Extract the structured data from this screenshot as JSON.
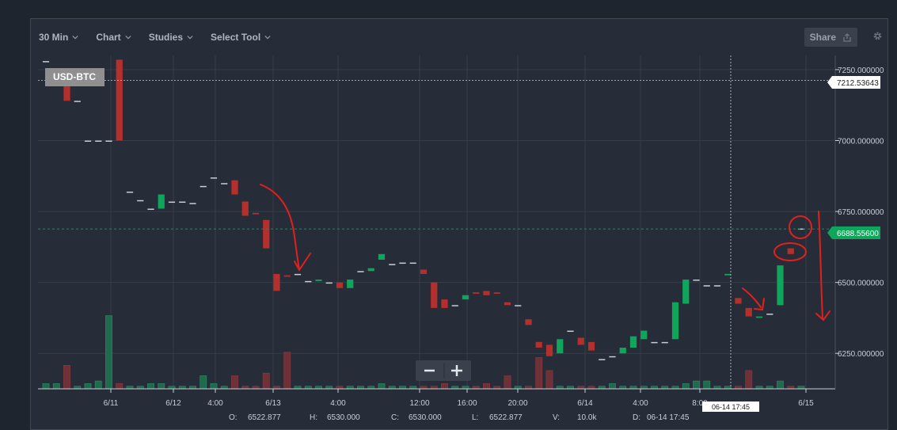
{
  "toolbar": {
    "interval": "30 Min",
    "chart": "Chart",
    "studies": "Studies",
    "select_tool": "Select Tool",
    "share": "Share"
  },
  "symbol": "USD-BTC",
  "crosshair_date": "06-14 17:45",
  "price_labels": {
    "crosshair": "7212.53643",
    "last": "6688.55600"
  },
  "ohlc": {
    "o_label": "O:",
    "o": "6522.877",
    "h_label": "H:",
    "h": "6530.000",
    "c_label": "C:",
    "c": "6530.000",
    "l_label": "L:",
    "l": "6522.877",
    "v_label": "V:",
    "v": "10.0k",
    "d_label": "D:",
    "d": "06-14 17:45"
  },
  "colors": {
    "up": "#0fa55a",
    "down": "#b3302d",
    "annotation": "#e0211d"
  },
  "chart_data": {
    "type": "candlestick",
    "y_ticks": [
      "7250.000000",
      "7000.000000",
      "6750.000000",
      "6500.000000",
      "6250.000000"
    ],
    "x_ticks": [
      "6/11",
      "6/12",
      "4:00",
      "6/13",
      "4:00",
      "12:00",
      "16:00",
      "20:00",
      "6/14",
      "4:00",
      "8:00",
      "6/15"
    ],
    "ylim": [
      6125,
      7300
    ],
    "grid": true,
    "candles": [
      {
        "o": 7280,
        "c": 7280
      },
      {
        "o": 7215,
        "c": 7215
      },
      {
        "o": 7200,
        "c": 7140
      },
      {
        "o": 7140,
        "c": 7140
      },
      {
        "o": 7000,
        "c": 7000
      },
      {
        "o": 7000,
        "c": 7000
      },
      {
        "o": 7000,
        "c": 7000
      },
      {
        "o": 7285,
        "c": 7000
      },
      {
        "o": 6820,
        "c": 6820
      },
      {
        "o": 6790,
        "c": 6790
      },
      {
        "o": 6760,
        "c": 6760
      },
      {
        "o": 6760,
        "c": 6810
      },
      {
        "o": 6785,
        "c": 6785
      },
      {
        "o": 6785,
        "c": 6785
      },
      {
        "o": 6780,
        "c": 6780
      },
      {
        "o": 6840,
        "c": 6840
      },
      {
        "o": 6870,
        "c": 6870
      },
      {
        "o": 6850,
        "c": 6850
      },
      {
        "o": 6860,
        "c": 6810
      },
      {
        "o": 6785,
        "c": 6735
      },
      {
        "o": 6745,
        "c": 6740
      },
      {
        "o": 6720,
        "c": 6620
      },
      {
        "o": 6530,
        "c": 6470
      },
      {
        "o": 6525,
        "c": 6520
      },
      {
        "o": 6530,
        "c": 6530
      },
      {
        "o": 6505,
        "c": 6505
      },
      {
        "o": 6505,
        "c": 6510
      },
      {
        "o": 6500,
        "c": 6500
      },
      {
        "o": 6500,
        "c": 6480
      },
      {
        "o": 6480,
        "c": 6510
      },
      {
        "o": 6540,
        "c": 6540
      },
      {
        "o": 6540,
        "c": 6550
      },
      {
        "o": 6580,
        "c": 6600
      },
      {
        "o": 6565,
        "c": 6565
      },
      {
        "o": 6570,
        "c": 6570
      },
      {
        "o": 6570,
        "c": 6570
      },
      {
        "o": 6545,
        "c": 6530
      },
      {
        "o": 6500,
        "c": 6410
      },
      {
        "o": 6440,
        "c": 6410
      },
      {
        "o": 6420,
        "c": 6420
      },
      {
        "o": 6440,
        "c": 6455
      },
      {
        "o": 6465,
        "c": 6460
      },
      {
        "o": 6470,
        "c": 6455
      },
      {
        "o": 6465,
        "c": 6460
      },
      {
        "o": 6430,
        "c": 6420
      },
      {
        "o": 6420,
        "c": 6420
      },
      {
        "o": 6370,
        "c": 6350
      },
      {
        "o": 6290,
        "c": 6270
      },
      {
        "o": 6280,
        "c": 6240
      },
      {
        "o": 6250,
        "c": 6300
      },
      {
        "o": 6330,
        "c": 6330
      },
      {
        "o": 6305,
        "c": 6280
      },
      {
        "o": 6290,
        "c": 6260
      },
      {
        "o": 6230,
        "c": 6230
      },
      {
        "o": 6240,
        "c": 6240
      },
      {
        "o": 6250,
        "c": 6270
      },
      {
        "o": 6270,
        "c": 6310
      },
      {
        "o": 6300,
        "c": 6330
      },
      {
        "o": 6290,
        "c": 6290
      },
      {
        "o": 6290,
        "c": 6290
      },
      {
        "o": 6300,
        "c": 6430
      },
      {
        "o": 6425,
        "c": 6510
      },
      {
        "o": 6510,
        "c": 6510
      },
      {
        "o": 6490,
        "c": 6490
      },
      {
        "o": 6490,
        "c": 6490
      },
      {
        "o": 6525,
        "c": 6530
      },
      {
        "o": 6445,
        "c": 6425
      },
      {
        "o": 6410,
        "c": 6380
      },
      {
        "o": 6375,
        "c": 6380
      },
      {
        "o": 6390,
        "c": 6390
      },
      {
        "o": 6420,
        "c": 6560
      },
      {
        "o": 6620,
        "c": 6600
      },
      {
        "o": 6690,
        "c": 6690
      }
    ],
    "volumes": [
      2,
      2,
      9,
      1,
      2,
      3,
      28,
      2,
      1,
      1,
      2,
      2,
      1,
      1,
      1,
      5,
      2,
      1,
      5,
      1,
      1,
      6,
      1,
      14,
      1,
      1,
      1,
      1,
      1,
      1,
      1,
      1,
      2,
      1,
      1,
      1,
      1,
      1,
      2,
      1,
      1,
      1,
      2,
      1,
      5,
      1,
      1,
      12,
      7,
      1,
      1,
      1,
      1,
      1,
      2,
      1,
      1,
      1,
      1,
      1,
      1,
      2,
      3,
      3,
      1,
      1,
      1,
      7,
      1,
      1,
      3,
      1,
      1
    ]
  }
}
